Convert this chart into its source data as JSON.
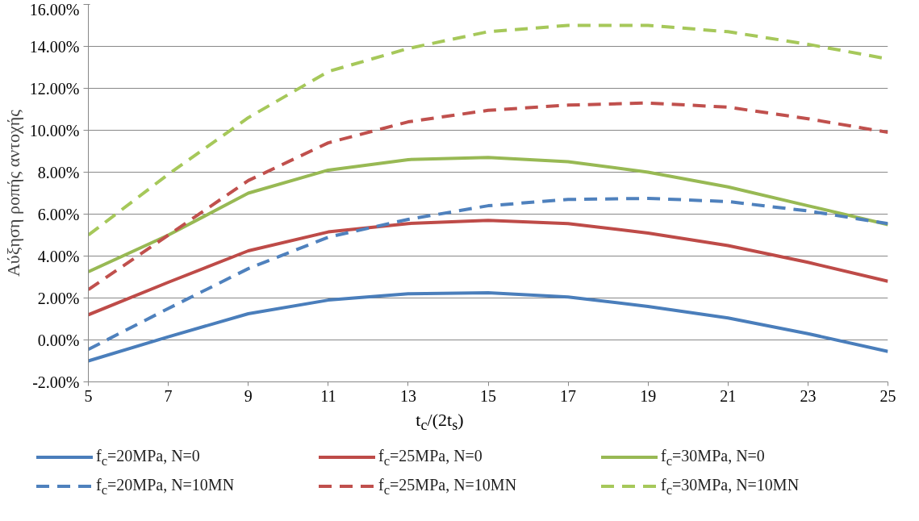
{
  "chart_data": {
    "type": "line",
    "xlabel": "t$_{c}$/(2t$_{s}$)",
    "ylabel": "Αύξηση ροπής αντοχής",
    "x": [
      5,
      7,
      9,
      11,
      13,
      15,
      17,
      19,
      21,
      23,
      25
    ],
    "xlim": [
      5,
      25
    ],
    "xticks": [
      5,
      7,
      9,
      11,
      13,
      15,
      17,
      19,
      21,
      23,
      25
    ],
    "ylim": [
      -2,
      16
    ],
    "yticks": [
      {
        "value": -2,
        "label": "-2.00%"
      },
      {
        "value": 0,
        "label": "0.00%"
      },
      {
        "value": 2,
        "label": "2.00%"
      },
      {
        "value": 4,
        "label": "4.00%"
      },
      {
        "value": 6,
        "label": "6.00%"
      },
      {
        "value": 8,
        "label": "8.00%"
      },
      {
        "value": 10,
        "label": "10.00%"
      },
      {
        "value": 12,
        "label": "12.00%"
      },
      {
        "value": 14,
        "label": "14.00%"
      },
      {
        "value": 16,
        "label": "16.00%"
      }
    ],
    "grid": "y",
    "legend": "bottom",
    "marker": "none",
    "series": [
      {
        "name": "f$_{c}$=20MPa, N=0",
        "color": "#4a7ebb",
        "line_style": "solid",
        "values": [
          -1.0,
          0.15,
          1.25,
          1.9,
          2.2,
          2.25,
          2.05,
          1.6,
          1.05,
          0.3,
          -0.55
        ]
      },
      {
        "name": "f$_{c}$=25MPa, N=0",
        "color": "#be4b48",
        "line_style": "solid",
        "values": [
          1.2,
          2.75,
          4.25,
          5.15,
          5.55,
          5.7,
          5.55,
          5.1,
          4.5,
          3.7,
          2.8
        ]
      },
      {
        "name": "f$_{c}$=30MPa, N=0",
        "color": "#98b954",
        "line_style": "solid",
        "values": [
          3.25,
          5.0,
          7.0,
          8.1,
          8.6,
          8.7,
          8.5,
          8.0,
          7.3,
          6.4,
          5.5
        ]
      },
      {
        "name": "f$_{c}$=20MPa, N=10MN",
        "color": "#4f81bd",
        "line_style": "dashed",
        "values": [
          -0.45,
          1.5,
          3.4,
          4.9,
          5.75,
          6.4,
          6.7,
          6.75,
          6.6,
          6.15,
          5.55
        ]
      },
      {
        "name": "f$_{c}$=25MPa, N=10MN",
        "color": "#c0504d",
        "line_style": "dashed",
        "values": [
          2.4,
          5.0,
          7.6,
          9.4,
          10.4,
          10.95,
          11.2,
          11.3,
          11.1,
          10.55,
          9.9
        ]
      },
      {
        "name": "f$_{c}$=30MPa, N=10MN",
        "color": "#a6c85a",
        "line_style": "dashed",
        "values": [
          5.0,
          7.9,
          10.6,
          12.8,
          13.9,
          14.7,
          15.0,
          15.0,
          14.7,
          14.1,
          13.4
        ]
      }
    ]
  }
}
